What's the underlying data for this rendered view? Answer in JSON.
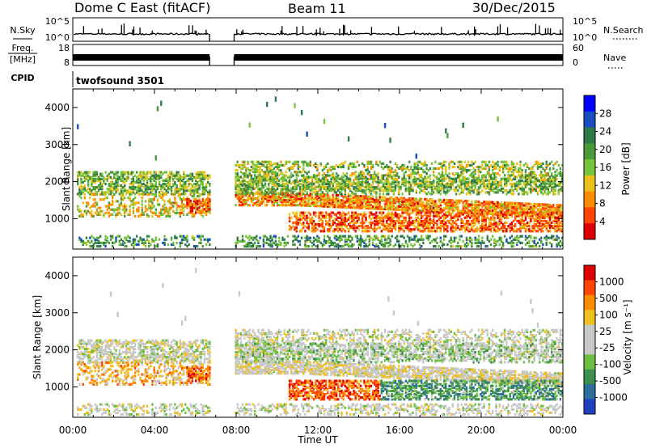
{
  "header": {
    "station": "Dome C East (fitACF)",
    "beam": "Beam 11",
    "date": "30/Dec/2015"
  },
  "left_labels": {
    "nsky": "N.Sky",
    "freq_line1": "Freq.",
    "freq_line2": "[MHz]",
    "cpid": "CPID"
  },
  "right_labels": {
    "nsearch": "N.Search",
    "nave": "Nave"
  },
  "cpid_text": "twofsound 3501",
  "chart_data": [
    {
      "type": "line",
      "panel": "noise",
      "yticks_left": [
        "10^5",
        "10^0"
      ],
      "yticks_right": [
        "10^5",
        "10^0"
      ],
      "data_gap_ut": [
        6.7,
        7.9
      ],
      "level": "low with sparse spikes"
    },
    {
      "type": "line",
      "panel": "frequency",
      "yticks_left": [
        "18",
        "8"
      ],
      "yticks_right": [
        "60",
        "0"
      ],
      "data_gap_ut": [
        6.7,
        7.9
      ],
      "level": "dense oscillation near upper range"
    },
    {
      "type": "heatmap",
      "panel": "power",
      "xlabel": "",
      "ylabel": "Slant Range [km]",
      "xlim": [
        0,
        24
      ],
      "ylim": [
        180,
        4500
      ],
      "yticks": [
        "4000",
        "3000",
        "2000",
        "1000"
      ],
      "colorbar_label": "Power [dB]",
      "colorbar_ticks": [
        "28",
        "24",
        "20",
        "16",
        "12",
        "8",
        "4"
      ],
      "colorbar_colors": [
        "#0000ff",
        "#1a4fc0",
        "#2f7a4a",
        "#4a9a3a",
        "#77c43a",
        "#e8c21a",
        "#ff8c00",
        "#ff4500",
        "#dd0000"
      ]
    },
    {
      "type": "heatmap",
      "panel": "velocity",
      "xlabel": "Time UT",
      "ylabel": "Slant Range [km]",
      "xlim": [
        0,
        24
      ],
      "ylim": [
        180,
        4500
      ],
      "yticks": [
        "4000",
        "3000",
        "2000",
        "1000"
      ],
      "xticks": [
        "00:00",
        "04:00",
        "08:00",
        "12:00",
        "16:00",
        "20:00",
        "00:00"
      ],
      "colorbar_label": "Velocity [m s⁻¹]",
      "colorbar_ticks": [
        "1000",
        "500",
        "100",
        "25",
        "-25",
        "-100",
        "-500",
        "-1000"
      ],
      "colorbar_colors": [
        "#2040c0",
        "#2d6e9c",
        "#3d8f4e",
        "#6cc040",
        "#c8c8c8",
        "#c8c8c8",
        "#f0c020",
        "#ff8c00",
        "#ff4500",
        "#e00000"
      ]
    }
  ]
}
